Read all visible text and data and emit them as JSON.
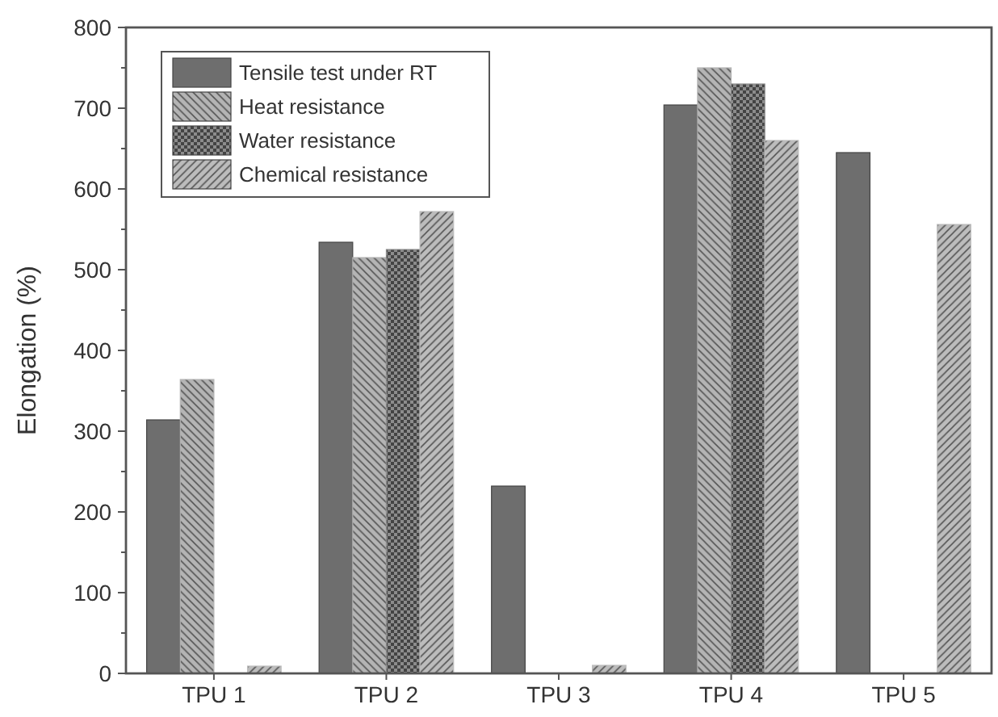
{
  "chart_data": {
    "type": "bar",
    "ylabel": "Elongation (%)",
    "categories": [
      "TPU 1",
      "TPU 2",
      "TPU 3",
      "TPU 4",
      "TPU 5"
    ],
    "series": [
      {
        "name": "Tensile test under RT",
        "color": "#6e6e6e",
        "values": [
          314,
          534,
          232,
          704,
          645
        ]
      },
      {
        "name": "Heat resistance",
        "color": "#b4b4b4",
        "values": [
          364,
          515,
          null,
          750,
          null
        ]
      },
      {
        "name": "Water resistance",
        "color": "#8c8c8c",
        "values": [
          null,
          525,
          null,
          730,
          null
        ]
      },
      {
        "name": "Chemical resistance",
        "color": "#bcbcbc",
        "values": [
          9,
          572,
          10,
          660,
          556
        ]
      }
    ],
    "ylim": [
      0,
      800
    ],
    "yticks": [
      0,
      {
        "value": 50,
        "label": null
      },
      100,
      {
        "value": 150,
        "label": null
      },
      200,
      {
        "value": 250,
        "label": null
      },
      300,
      {
        "value": 350,
        "label": null
      },
      400,
      {
        "value": 450,
        "label": null
      },
      500,
      {
        "value": 550,
        "label": null
      },
      600,
      {
        "value": 650,
        "label": null
      },
      700,
      {
        "value": 750,
        "label": null
      },
      800
    ],
    "legend": "top left",
    "grid": false
  }
}
